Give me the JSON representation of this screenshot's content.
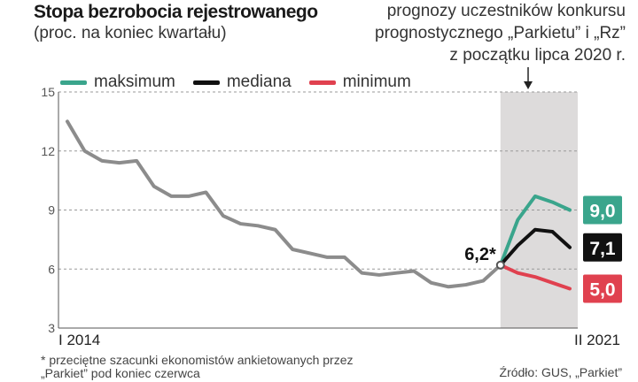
{
  "header": {
    "title": "Stopa bezrobocia rejestrowanego",
    "subtitle": "(proc. na koniec kwartału)",
    "forecast_note": [
      "prognozy uczestników konkursu",
      "prognostycznego „Parkietu” i „Rz”",
      "z początku lipca 2020 r."
    ]
  },
  "legend": {
    "max": "maksimum",
    "median": "mediana",
    "min": "minimum"
  },
  "footer": {
    "footnote_line1": "* przeciętne szacunki ekonomistów ankietowanych przez",
    "footnote_line2": "„Parkiet” pod koniec czerwca",
    "source": "Źródło: GUS, „Parkiet”"
  },
  "colors": {
    "history": "#8c8c8c",
    "max": "#3aa58c",
    "median": "#111111",
    "min": "#e0414f",
    "forecast_band": "#dddbdb",
    "grid": "#999999"
  },
  "chart_data": {
    "type": "line",
    "title": "Stopa bezrobocia rejestrowanego",
    "subtitle": "(proc. na koniec kwartału)",
    "x_start_label": "I 2014",
    "x_end_label": "II 2021",
    "ylim": [
      3,
      15
    ],
    "yticks": [
      3,
      6,
      9,
      12,
      15
    ],
    "grid": true,
    "legend_position": "top-left",
    "history": {
      "values": [
        13.5,
        12.0,
        11.5,
        11.4,
        11.5,
        10.2,
        9.7,
        9.7,
        9.9,
        8.7,
        8.3,
        8.2,
        8.0,
        7.0,
        6.8,
        6.6,
        6.6,
        5.8,
        5.7,
        5.8,
        5.9,
        5.3,
        5.1,
        5.2,
        5.4,
        6.2
      ]
    },
    "forecast": [
      {
        "name": "maksimum",
        "values": [
          6.2,
          8.5,
          9.7,
          9.4,
          9.0
        ],
        "end_label": "9,0"
      },
      {
        "name": "mediana",
        "values": [
          6.2,
          7.2,
          8.0,
          7.9,
          7.1
        ],
        "end_label": "7,1"
      },
      {
        "name": "minimum",
        "values": [
          6.2,
          5.8,
          5.6,
          5.3,
          5.0
        ],
        "end_label": "5,0"
      }
    ],
    "start_point_label": "6,2*"
  }
}
